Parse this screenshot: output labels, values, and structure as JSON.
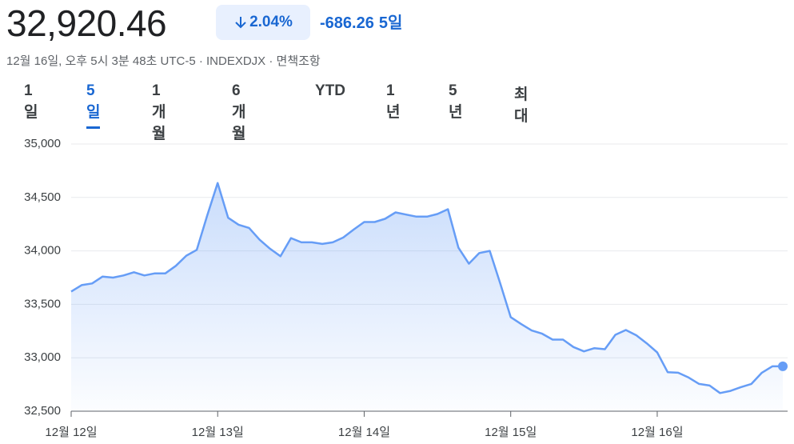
{
  "header": {
    "price": "32,920.46",
    "change_pct": "2.04%",
    "change": "-686.26",
    "period": "5일",
    "subtitle": "12월 16일, 오후 5시 3분 48초 UTC-5 · INDEXDJX · 면책조항"
  },
  "tabs": {
    "items": [
      "1일",
      "5일",
      "1개월",
      "6개월",
      "YTD",
      "1년",
      "5년",
      "최대"
    ],
    "selected": 1
  },
  "chart_data": {
    "type": "area",
    "categories": [
      "12월 12일",
      null,
      null,
      null,
      null,
      null,
      null,
      null,
      null,
      null,
      null,
      null,
      null,
      null,
      "12월 13일",
      null,
      null,
      null,
      null,
      null,
      null,
      null,
      null,
      null,
      null,
      null,
      null,
      null,
      "12월 14일",
      null,
      null,
      null,
      null,
      null,
      null,
      null,
      null,
      null,
      null,
      null,
      null,
      null,
      "12월 15일",
      null,
      null,
      null,
      null,
      null,
      null,
      null,
      null,
      null,
      null,
      null,
      null,
      null,
      "12월 16일",
      null,
      null,
      null,
      null,
      null,
      null,
      null,
      null,
      null,
      null,
      null,
      null
    ],
    "series": [
      {
        "color": "#669df6",
        "values": [
          33620,
          33680,
          33695,
          33760,
          33750,
          33770,
          33800,
          33770,
          33790,
          33790,
          33860,
          33955,
          34010,
          34330,
          34635,
          34310,
          34245,
          34215,
          34105,
          34020,
          33950,
          34120,
          34080,
          34080,
          34065,
          34080,
          34125,
          34200,
          34270,
          34270,
          34300,
          34360,
          34340,
          34320,
          34320,
          34345,
          34390,
          34030,
          33880,
          33980,
          34000,
          33695,
          33380,
          33315,
          33255,
          33225,
          33170,
          33170,
          33100,
          33060,
          33090,
          33080,
          33215,
          33260,
          33210,
          33135,
          33050,
          32865,
          32860,
          32815,
          32755,
          32740,
          32670,
          32690,
          32725,
          32755,
          32860,
          32920,
          32920
        ]
      }
    ],
    "ylim": [
      32500,
      35000
    ],
    "yticks": [
      {
        "value": 32500,
        "label": "32,500"
      },
      {
        "value": 33000,
        "label": "33,000"
      },
      {
        "value": 33500,
        "label": "33,500"
      },
      {
        "value": 34000,
        "label": "34,000"
      },
      {
        "value": 34500,
        "label": "34,500"
      },
      {
        "value": 35000,
        "label": "35,000"
      }
    ],
    "grid": true
  }
}
